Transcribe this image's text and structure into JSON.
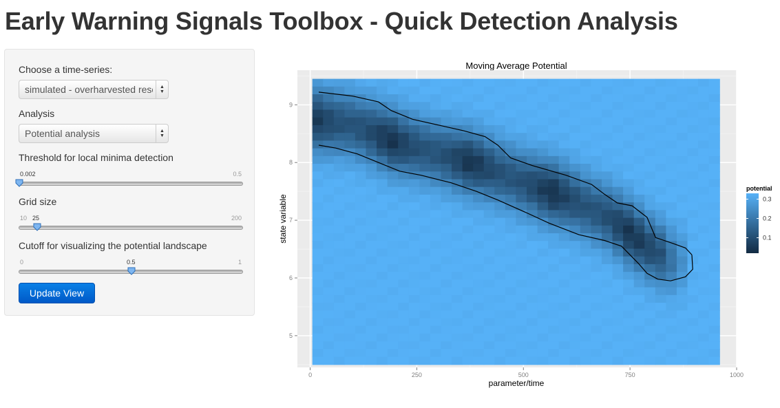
{
  "page": {
    "title": "Early Warning Signals Toolbox - Quick Detection Analysis"
  },
  "sidebar": {
    "timeseries_label": "Choose a time-series:",
    "timeseries_value": "simulated - overharvested resource",
    "analysis_label": "Analysis",
    "analysis_value": "Potential analysis",
    "threshold": {
      "label": "Threshold for local minima detection",
      "min": "0.002",
      "max": "0.5",
      "value": 0.002,
      "value_label": "0.002"
    },
    "grid": {
      "label": "Grid size",
      "min": "10",
      "max": "200",
      "value": 25,
      "value_label": "25"
    },
    "cutoff": {
      "label": "Cutoff for visualizing the potential landscape",
      "min": "0",
      "max": "1",
      "value": 0.5,
      "value_label": "0.5"
    },
    "update_button": "Update View"
  },
  "chart_data": {
    "type": "heatmap",
    "title": "Moving Average Potential",
    "xlabel": "parameter/time",
    "ylabel": "state variable",
    "xlim": [
      -30,
      1000
    ],
    "ylim": [
      4.45,
      9.6
    ],
    "x_ticks": [
      0,
      250,
      500,
      750,
      1000
    ],
    "x_tick_labels": [
      "0",
      "250",
      "500",
      "750",
      "1000"
    ],
    "y_ticks": [
      5,
      6,
      7,
      8,
      9
    ],
    "y_tick_labels": [
      "5",
      "6",
      "7",
      "8",
      "9"
    ],
    "data_extent": {
      "x": [
        5,
        960
      ],
      "y": [
        4.5,
        9.45
      ]
    },
    "legend": {
      "title": "potential",
      "ticks": [
        0.1,
        0.2,
        0.3
      ],
      "tick_labels": [
        "0.1",
        "0.2",
        "0.3"
      ],
      "range": [
        0.02,
        0.33
      ],
      "placement": "right"
    },
    "colors": {
      "low": "#132b43",
      "high": "#56b1f7",
      "panel": "#ebebeb",
      "grid": "#ffffff"
    },
    "valley_path": [
      [
        0,
        8.75
      ],
      [
        100,
        8.65
      ],
      [
        200,
        8.35
      ],
      [
        300,
        8.15
      ],
      [
        400,
        7.95
      ],
      [
        500,
        7.65
      ],
      [
        600,
        7.4
      ],
      [
        700,
        7.05
      ],
      [
        800,
        6.5
      ],
      [
        850,
        6.3
      ]
    ],
    "contour": [
      [
        20,
        9.22
      ],
      [
        100,
        9.15
      ],
      [
        160,
        9.05
      ],
      [
        190,
        8.9
      ],
      [
        240,
        8.75
      ],
      [
        300,
        8.65
      ],
      [
        360,
        8.55
      ],
      [
        410,
        8.45
      ],
      [
        440,
        8.3
      ],
      [
        470,
        8.08
      ],
      [
        520,
        7.95
      ],
      [
        600,
        7.78
      ],
      [
        660,
        7.62
      ],
      [
        690,
        7.45
      ],
      [
        720,
        7.3
      ],
      [
        755,
        7.25
      ],
      [
        790,
        7.05
      ],
      [
        810,
        6.7
      ],
      [
        850,
        6.6
      ],
      [
        880,
        6.52
      ],
      [
        895,
        6.4
      ],
      [
        897,
        6.15
      ],
      [
        880,
        6.02
      ],
      [
        845,
        5.95
      ],
      [
        815,
        5.98
      ],
      [
        790,
        6.08
      ],
      [
        770,
        6.25
      ],
      [
        730,
        6.55
      ],
      [
        690,
        6.65
      ],
      [
        630,
        6.75
      ],
      [
        560,
        6.95
      ],
      [
        510,
        7.12
      ],
      [
        440,
        7.35
      ],
      [
        390,
        7.5
      ],
      [
        330,
        7.65
      ],
      [
        260,
        7.78
      ],
      [
        210,
        7.85
      ],
      [
        160,
        8.0
      ],
      [
        110,
        8.15
      ],
      [
        60,
        8.25
      ],
      [
        20,
        8.3
      ]
    ]
  }
}
